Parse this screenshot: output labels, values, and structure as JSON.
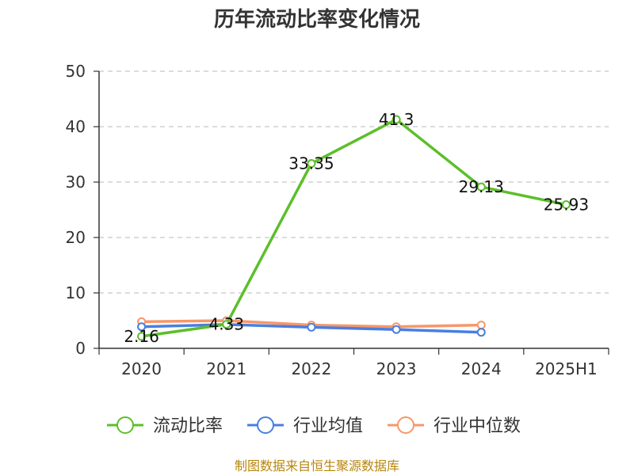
{
  "chart_data": {
    "type": "line",
    "title": "历年流动比率变化情况",
    "categories": [
      "2020",
      "2021",
      "2022",
      "2023",
      "2024",
      "2025H1"
    ],
    "ylim": [
      0,
      50
    ],
    "yticks": [
      "0",
      "10",
      "20",
      "30",
      "40",
      "50"
    ],
    "grid": true,
    "legend_position": "bottom",
    "series": [
      {
        "name": "流动比率",
        "color": "#5cbf2a",
        "values": [
          2.16,
          4.33,
          33.35,
          41.3,
          29.13,
          25.93
        ],
        "labels": [
          "2.16",
          "4.33",
          "33.35",
          "41.3",
          "29.13",
          "25.93"
        ]
      },
      {
        "name": "行业均值",
        "color": "#4a7ee0",
        "values": [
          3.9,
          4.3,
          3.8,
          3.4,
          2.9,
          null
        ]
      },
      {
        "name": "行业中位数",
        "color": "#f7976a",
        "values": [
          4.8,
          5.0,
          4.2,
          3.9,
          4.2,
          null
        ]
      }
    ],
    "source": "制图数据来自恒生聚源数据库"
  }
}
